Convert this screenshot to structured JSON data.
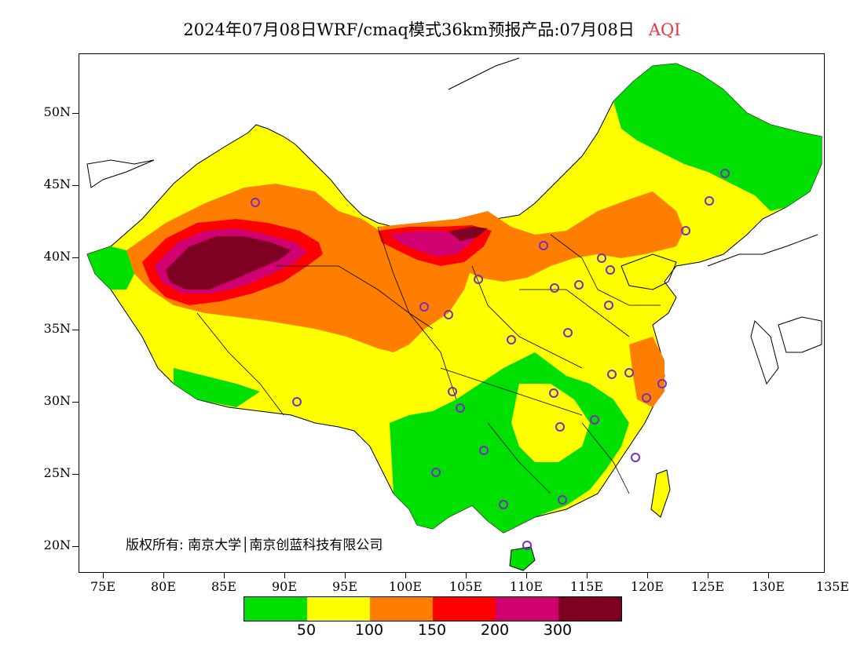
{
  "title": {
    "main": "2024年07月08日WRF/cmaq模式36km预报产品:07月08日",
    "variable": "AQI"
  },
  "axes": {
    "lat_labels": [
      "50N",
      "45N",
      "40N",
      "35N",
      "30N",
      "25N",
      "20N"
    ],
    "lon_labels": [
      "75E",
      "80E",
      "85E",
      "90E",
      "95E",
      "100E",
      "105E",
      "110E",
      "115E",
      "120E",
      "125E",
      "130E",
      "135E"
    ]
  },
  "copyright": "版权所有: 南京大学│南京创蓝科技有限公司",
  "legend": {
    "colors": [
      "#00e000",
      "#ffff00",
      "#ff7e00",
      "#ff0000",
      "#d00070",
      "#7e0023"
    ],
    "labels": [
      "50",
      "100",
      "150",
      "200",
      "300"
    ]
  },
  "colors": {
    "good": "#00e000",
    "moderate": "#ffff00",
    "sensitive": "#ff7e00",
    "unhealthy": "#ff0000",
    "very_unhealthy": "#d00070",
    "hazardous": "#7e0023",
    "station_marker": "#7a2cc0"
  }
}
